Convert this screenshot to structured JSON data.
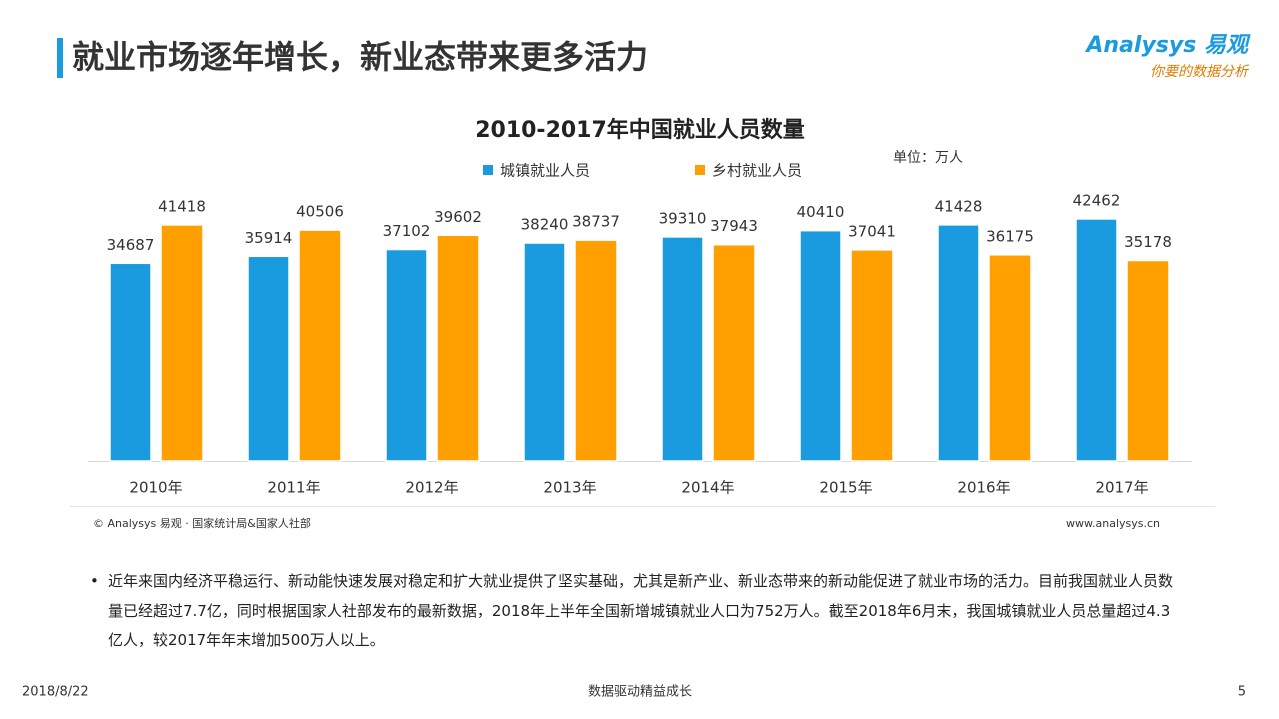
{
  "header": {
    "title": "就业市场逐年增长，新业态带来更多活力",
    "logo": "Analysys 易观",
    "slogan": "你要的数据分析"
  },
  "chart_data": {
    "type": "bar",
    "title": "2010-2017年中国就业人员数量",
    "unit": "单位：万人",
    "categories": [
      "2010年",
      "2011年",
      "2012年",
      "2013年",
      "2014年",
      "2015年",
      "2016年",
      "2017年"
    ],
    "series": [
      {
        "name": "城镇就业人员",
        "color": "#1a9be0",
        "values": [
          34687,
          35914,
          37102,
          38240,
          39310,
          40410,
          41428,
          42462
        ]
      },
      {
        "name": "乡村就业人员",
        "color": "#ffa000",
        "values": [
          41418,
          40506,
          39602,
          38737,
          37943,
          37041,
          36175,
          35178
        ]
      }
    ],
    "legend": "top"
  },
  "source": "© Analysys 易观 · 国家统计局&国家人社部",
  "website": "www.analysys.cn",
  "notes": [
    "近年来国内经济平稳运行、新动能快速发展对稳定和扩大就业提供了坚实基础，尤其是新产业、新业态带来的新动能促进了就业市场的活力。目前我国就业人员数量已经超过7.7亿，同时根据国家人社部发布的最新数据，2018年上半年全国新增城镇就业人口为752万人。截至2018年6月末，我国城镇就业人员总量超过4.3亿人，较2017年年末增加500万人以上。"
  ],
  "footer": {
    "date": "2018/8/22",
    "tagline": "数据驱动精益成长",
    "page": 5
  }
}
